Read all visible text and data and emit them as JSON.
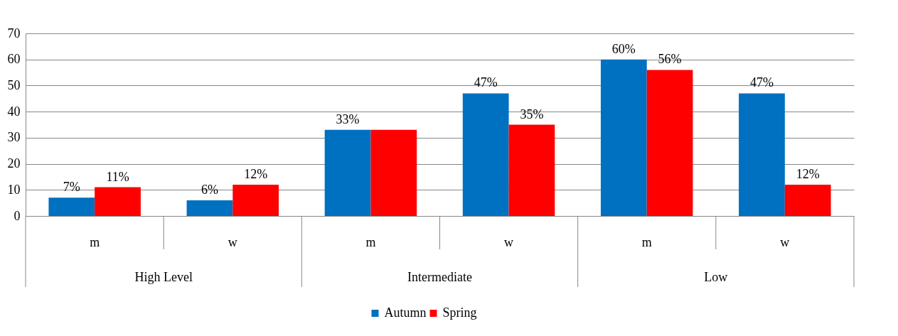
{
  "chart_data": {
    "type": "bar",
    "categories": [
      "m",
      "w",
      "m",
      "w",
      "m",
      "w"
    ],
    "series": [
      {
        "name": "Autumn",
        "color": "#0070c0",
        "values": [
          7,
          6,
          33,
          47,
          60,
          47
        ],
        "value_labels": [
          "7%",
          "6%",
          "33%",
          "47%",
          "60%",
          "47%"
        ]
      },
      {
        "name": "Spring",
        "color": "#ff0000",
        "values": [
          11,
          12,
          33,
          35,
          56,
          12
        ],
        "value_labels": [
          "11%",
          "12%",
          null,
          "35%",
          "56%",
          "12%"
        ]
      }
    ],
    "annotations": [
      "High Level",
      "Intermediate",
      "Low"
    ],
    "ylim": [
      0,
      70
    ],
    "yticks": [
      0,
      10,
      20,
      30,
      40,
      50,
      60,
      70
    ],
    "grid": "y",
    "legend": "bottom"
  }
}
